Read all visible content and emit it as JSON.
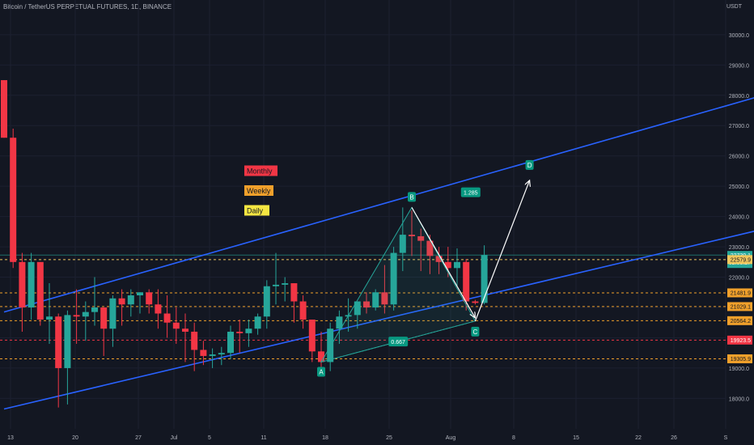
{
  "header": {
    "symbol": "Bitcoin / TetherUS PERPETUAL FUTURES, 1D, BINANCE"
  },
  "axis_unit": "USDT",
  "chart_data": {
    "type": "candlestick",
    "x_ticks": [
      "13",
      "20",
      "27",
      "Jul",
      "5",
      "11",
      "18",
      "25",
      "Aug",
      "8",
      "15",
      "22",
      "26",
      "S"
    ],
    "y_ticks": [
      30000,
      29000,
      28000,
      27000,
      26000,
      25000,
      24000,
      23000,
      22000,
      21000,
      20000,
      19000,
      18000
    ],
    "y_tick_labels": [
      "30000.0",
      "29000.0",
      "28000.0",
      "27000.0",
      "26000.0",
      "25000.0",
      "24000.0",
      "23000.0",
      "22000.0",
      "21000.0",
      "20000.0",
      "19000.0",
      "18000.0"
    ],
    "ylim": [
      17450,
      30450
    ],
    "candles": [
      {
        "date": "Jun 13",
        "o": 28500,
        "h": 28500,
        "c": 26600,
        "l": 26600
      },
      {
        "date": "Jun 14",
        "o": 26600,
        "h": 26900,
        "c": 22500,
        "l": 22300
      },
      {
        "date": "Jun 15",
        "o": 22500,
        "h": 22800,
        "c": 21000,
        "l": 20200
      },
      {
        "date": "Jun 16",
        "o": 21000,
        "h": 22800,
        "c": 22500,
        "l": 20600
      },
      {
        "date": "Jun 17",
        "o": 22500,
        "h": 22500,
        "c": 20600,
        "l": 20400
      },
      {
        "date": "Jun 18",
        "o": 20600,
        "h": 21800,
        "c": 20700,
        "l": 19800
      },
      {
        "date": "Jun 19",
        "o": 20700,
        "h": 20800,
        "c": 19000,
        "l": 17700
      },
      {
        "date": "Jun 20",
        "o": 19000,
        "h": 20900,
        "c": 20750,
        "l": 17800
      },
      {
        "date": "Jun 21",
        "o": 20750,
        "h": 21600,
        "c": 20700,
        "l": 19800
      },
      {
        "date": "Jun 22",
        "o": 20700,
        "h": 21200,
        "c": 20850,
        "l": 19900
      },
      {
        "date": "Jun 23",
        "o": 20850,
        "h": 22000,
        "c": 21000,
        "l": 20400
      },
      {
        "date": "Jun 24",
        "o": 21000,
        "h": 21000,
        "c": 20300,
        "l": 19400
      },
      {
        "date": "Jun 25",
        "o": 20300,
        "h": 21400,
        "c": 21300,
        "l": 19700
      },
      {
        "date": "Jun 26",
        "o": 21300,
        "h": 21600,
        "c": 21100,
        "l": 20400
      },
      {
        "date": "Jun 27",
        "o": 21100,
        "h": 21600,
        "c": 21400,
        "l": 20700
      },
      {
        "date": "Jun 28",
        "o": 21400,
        "h": 21500,
        "c": 21500,
        "l": 20800
      },
      {
        "date": "Jun 29",
        "o": 21500,
        "h": 21600,
        "c": 21100,
        "l": 20800
      },
      {
        "date": "Jun 30",
        "o": 21100,
        "h": 21600,
        "c": 20800,
        "l": 20300
      },
      {
        "date": "Jul 1",
        "o": 20800,
        "h": 21400,
        "c": 20500,
        "l": 20000
      },
      {
        "date": "Jul 2",
        "o": 20500,
        "h": 21000,
        "c": 20300,
        "l": 19800
      },
      {
        "date": "Jul 3",
        "o": 20300,
        "h": 20800,
        "c": 20200,
        "l": 19200
      },
      {
        "date": "Jul 4",
        "o": 20200,
        "h": 20500,
        "c": 19600,
        "l": 18900
      },
      {
        "date": "Jul 5",
        "o": 19600,
        "h": 19900,
        "c": 19400,
        "l": 19100
      },
      {
        "date": "Jul 6",
        "o": 19400,
        "h": 19650,
        "c": 19450,
        "l": 19000
      },
      {
        "date": "Jul 7",
        "o": 19450,
        "h": 19700,
        "c": 19500,
        "l": 19100
      },
      {
        "date": "Jul 8",
        "o": 19500,
        "h": 20400,
        "c": 20200,
        "l": 19300
      },
      {
        "date": "Jul 9",
        "o": 20200,
        "h": 20600,
        "c": 20150,
        "l": 19500
      },
      {
        "date": "Jul 10",
        "o": 20150,
        "h": 20600,
        "c": 20300,
        "l": 19700
      },
      {
        "date": "Jul 11",
        "o": 20300,
        "h": 20800,
        "c": 20700,
        "l": 20100
      },
      {
        "date": "Jul 12",
        "o": 20700,
        "h": 21900,
        "c": 21700,
        "l": 20300
      },
      {
        "date": "Jul 13",
        "o": 21700,
        "h": 22800,
        "c": 21750,
        "l": 21100
      },
      {
        "date": "Jul 14",
        "o": 21750,
        "h": 22000,
        "c": 21800,
        "l": 21200
      },
      {
        "date": "Jul 15",
        "o": 21800,
        "h": 21800,
        "c": 21200,
        "l": 20500
      },
      {
        "date": "Jul 16",
        "o": 21200,
        "h": 21400,
        "c": 20600,
        "l": 20300
      },
      {
        "date": "Jul 17",
        "o": 20600,
        "h": 20600,
        "c": 19550,
        "l": 19200
      },
      {
        "date": "Jul 18",
        "o": 19550,
        "h": 20200,
        "c": 19200,
        "l": 19000
      },
      {
        "date": "Jul 19",
        "o": 19200,
        "h": 20500,
        "c": 20300,
        "l": 18900
      },
      {
        "date": "Jul 20",
        "o": 20300,
        "h": 20900,
        "c": 20700,
        "l": 19800
      },
      {
        "date": "Jul 21",
        "o": 20700,
        "h": 21300,
        "c": 20750,
        "l": 20200
      },
      {
        "date": "Jul 22",
        "o": 20750,
        "h": 21200,
        "c": 21200,
        "l": 20300
      },
      {
        "date": "Jul 23",
        "o": 21200,
        "h": 21500,
        "c": 21000,
        "l": 20800
      },
      {
        "date": "Jul 24",
        "o": 21000,
        "h": 21600,
        "c": 21500,
        "l": 20900
      },
      {
        "date": "Jul 25",
        "o": 21500,
        "h": 22400,
        "c": 21100,
        "l": 20800
      },
      {
        "date": "Jul 26",
        "o": 21100,
        "h": 23000,
        "c": 22800,
        "l": 20900
      },
      {
        "date": "Jul 27",
        "o": 22800,
        "h": 24300,
        "c": 23400,
        "l": 22200
      },
      {
        "date": "Jul 28",
        "o": 23400,
        "h": 24200,
        "c": 23350,
        "l": 22700
      },
      {
        "date": "Jul 29",
        "o": 23350,
        "h": 23600,
        "c": 23200,
        "l": 22200
      },
      {
        "date": "Jul 30",
        "o": 23200,
        "h": 23400,
        "c": 22700,
        "l": 22100
      },
      {
        "date": "Jul 31",
        "o": 22700,
        "h": 23000,
        "c": 22500,
        "l": 22100
      },
      {
        "date": "Aug 1",
        "o": 22500,
        "h": 23000,
        "c": 22300,
        "l": 22000
      },
      {
        "date": "Aug 2",
        "o": 22300,
        "h": 22950,
        "c": 22500,
        "l": 21700
      },
      {
        "date": "Aug 3",
        "o": 22500,
        "h": 22600,
        "c": 21200,
        "l": 20900
      },
      {
        "date": "Aug 4",
        "o": 21200,
        "h": 21250,
        "c": 21150,
        "l": 21100
      },
      {
        "date": "Aug 5",
        "o": 21150,
        "h": 23050,
        "c": 22730,
        "l": 21100
      }
    ],
    "price_levels": [
      {
        "value": 22730.1,
        "label": "22730.1",
        "sub": "02:58:27",
        "color": "#26a69a",
        "style": "solid-thin"
      },
      {
        "value": 22579.9,
        "label": "22579.9",
        "color": "#f0c75e",
        "style": "dashed"
      },
      {
        "value": 21481.9,
        "label": "21481.9",
        "color": "#f0a02b",
        "style": "dashed"
      },
      {
        "value": 21029.1,
        "label": "21029.1",
        "color": "#f0a02b",
        "style": "dashed"
      },
      {
        "value": 20564.2,
        "label": "20564.2",
        "color": "#f0a02b",
        "style": "dashed"
      },
      {
        "value": 19923.5,
        "label": "19923.5",
        "color": "#f23645",
        "style": "dashed"
      },
      {
        "value": 19305.9,
        "label": "19305.9",
        "color": "#f0a02b",
        "style": "dashed"
      }
    ],
    "legend": [
      {
        "text": "Monthly",
        "color": "#f23645"
      },
      {
        "text": "Weekly",
        "color": "#f0a02b"
      },
      {
        "text": "Daily",
        "color": "#f5e642"
      }
    ],
    "channel_lines": [
      {
        "name": "upper",
        "from": {
          "date": "Jun 13",
          "price": 20850
        },
        "to": {
          "date": "Sep 5",
          "price": 28020
        },
        "color": "#2962ff"
      },
      {
        "name": "lower",
        "from": {
          "date": "Jun 13",
          "price": 17650
        },
        "to": {
          "date": "Sep 5",
          "price": 23600
        },
        "color": "#2962ff"
      }
    ],
    "pattern": {
      "points": [
        {
          "label": "A",
          "date": "Jul 18",
          "price": 19200
        },
        {
          "label": "B",
          "date": "Jul 28",
          "price": 24300
        },
        {
          "label": "C",
          "date": "Aug 4",
          "price": 20550
        },
        {
          "label": "D",
          "date": "Aug 10",
          "price": 25300
        }
      ],
      "ratios": [
        {
          "text": "0.667",
          "between": [
            "A",
            "C"
          ]
        },
        {
          "text": "1.285",
          "between": [
            "B",
            "D"
          ]
        }
      ]
    }
  }
}
